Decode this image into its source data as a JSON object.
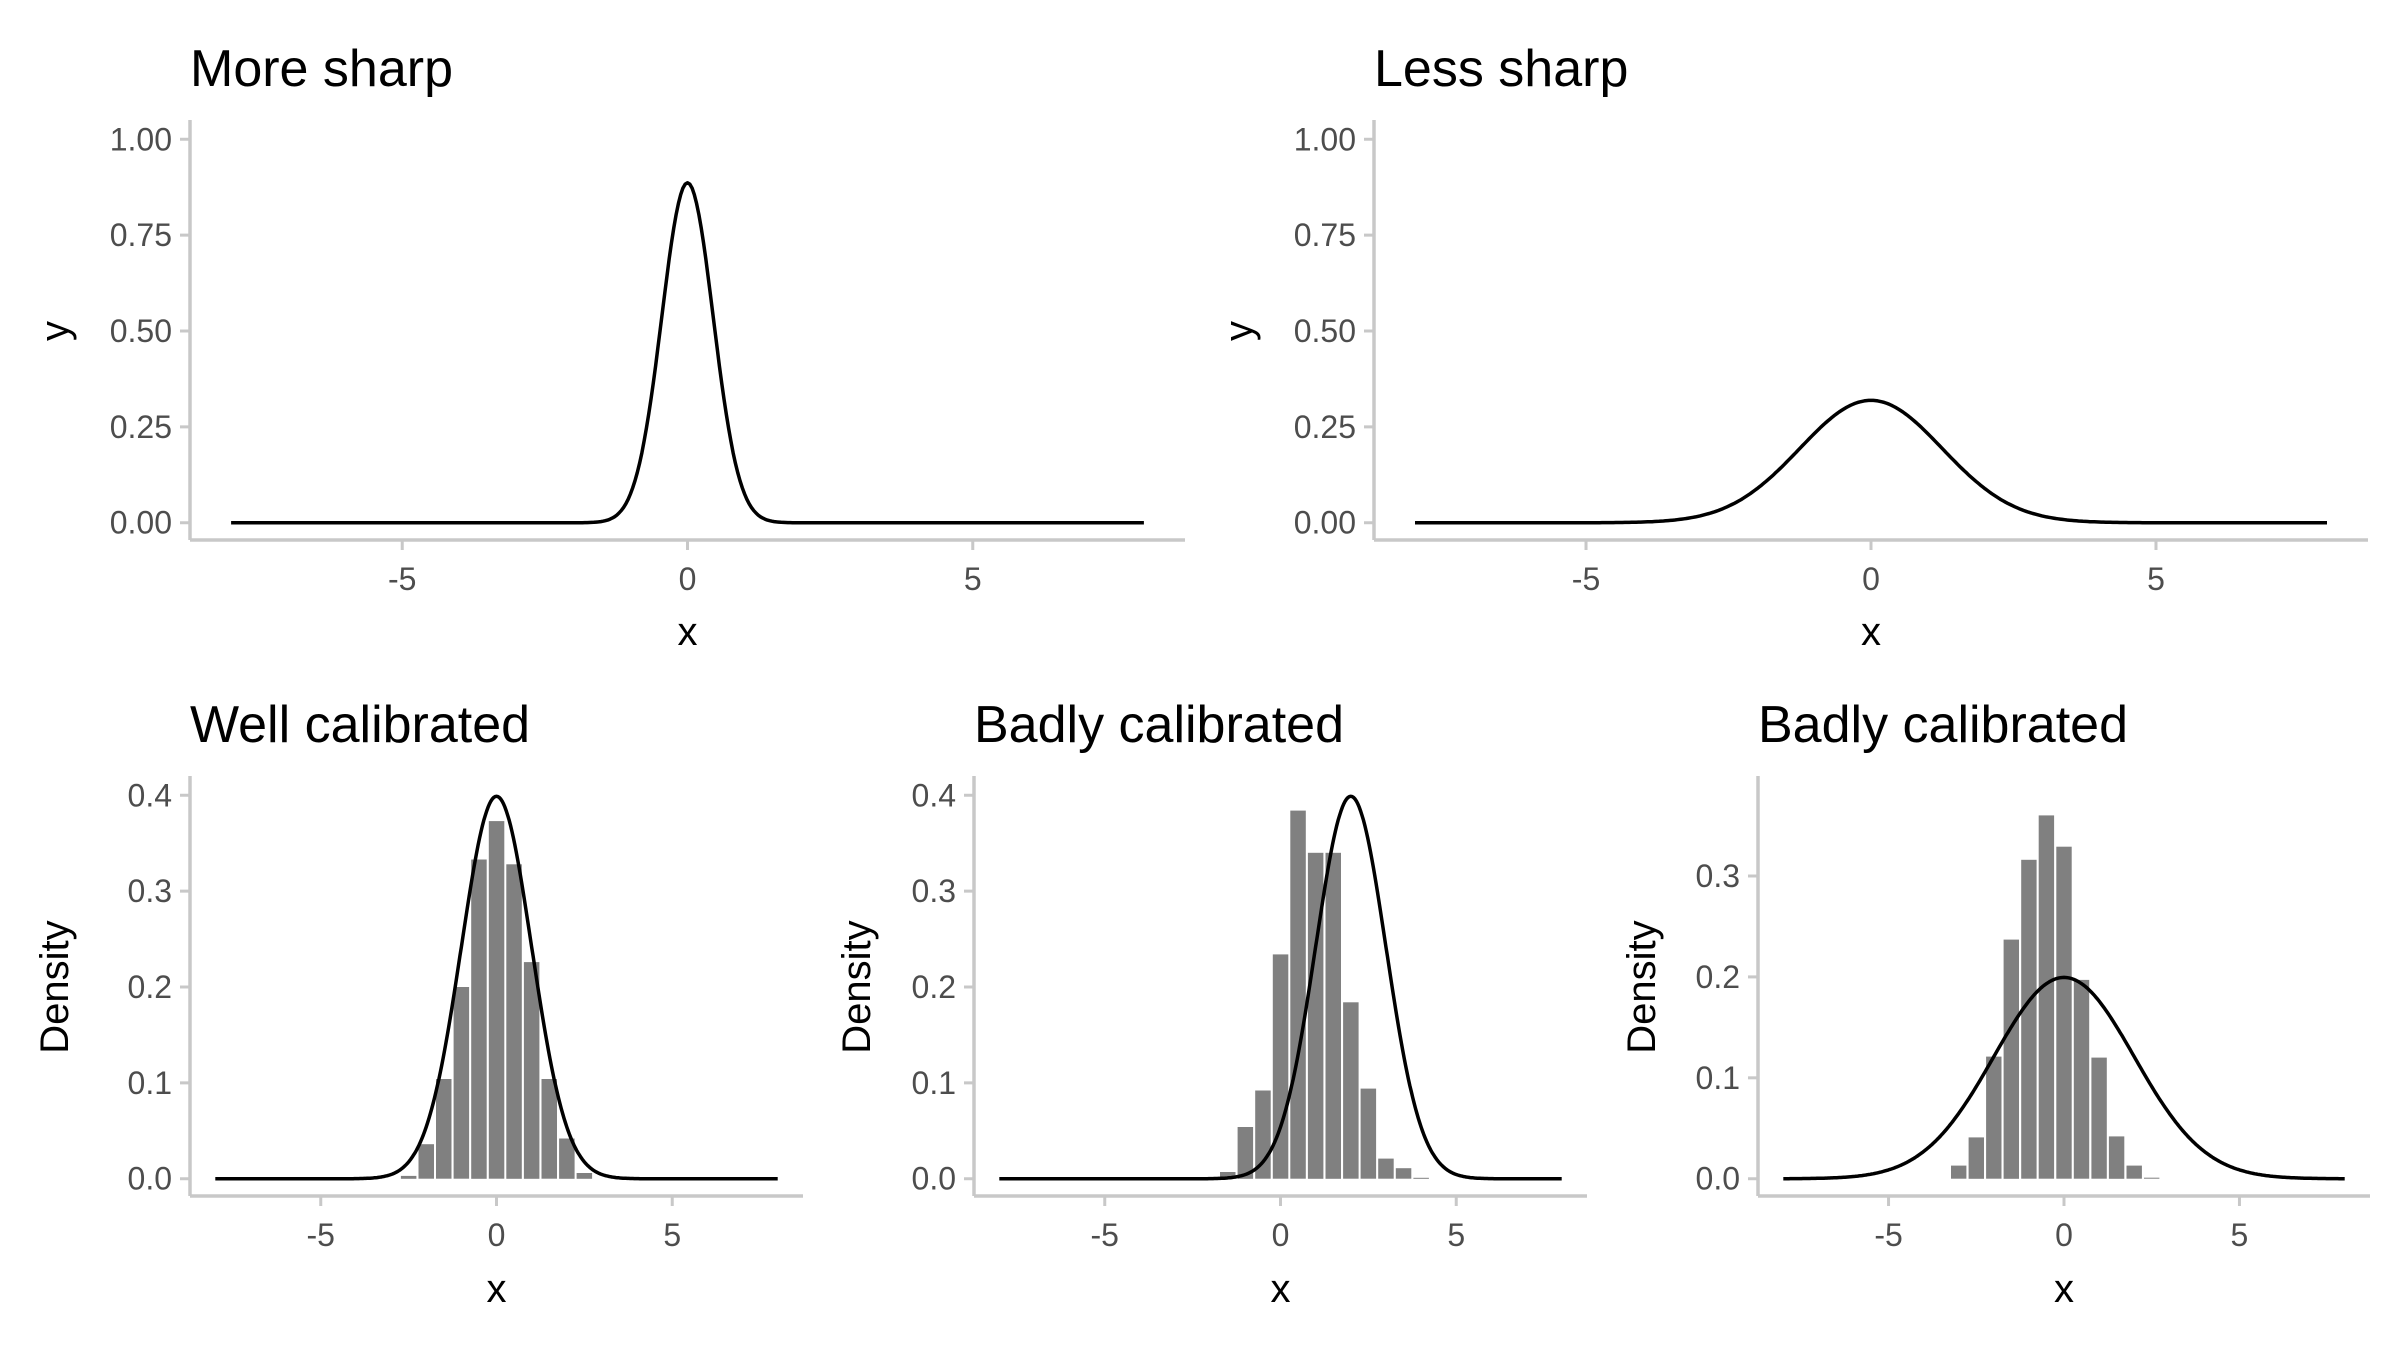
{
  "colors": {
    "background": "#ffffff",
    "bar": "#808080",
    "line": "#000000",
    "axis": "#c8c8c8",
    "tick_text": "#4d4d4d",
    "text": "#000000"
  },
  "chart_data": [
    {
      "type": "line",
      "title": "More sharp",
      "xlabel": "x",
      "ylabel": "y",
      "xlim": [
        -8,
        8
      ],
      "ylim": [
        0,
        1
      ],
      "xticks": [
        -5,
        0,
        5
      ],
      "xtick_labels": [
        "-5",
        "0",
        "5"
      ],
      "yticks": [
        0,
        0.25,
        0.5,
        0.75,
        1.0
      ],
      "ytick_labels": [
        "0.00",
        "0.25",
        "0.50",
        "0.75",
        "1.00"
      ],
      "grid": false,
      "curve": {
        "shape": "normal",
        "mean": 0,
        "sd": 0.45,
        "x_range": [
          -8,
          8
        ]
      }
    },
    {
      "type": "line",
      "title": "Less sharp",
      "xlabel": "x",
      "ylabel": "y",
      "xlim": [
        -8,
        8
      ],
      "ylim": [
        0,
        1
      ],
      "xticks": [
        -5,
        0,
        5
      ],
      "xtick_labels": [
        "-5",
        "0",
        "5"
      ],
      "yticks": [
        0,
        0.25,
        0.5,
        0.75,
        1.0
      ],
      "ytick_labels": [
        "0.00",
        "0.25",
        "0.50",
        "0.75",
        "1.00"
      ],
      "grid": false,
      "curve": {
        "shape": "normal",
        "mean": 0,
        "sd": 1.25,
        "x_range": [
          -8,
          8
        ]
      }
    },
    {
      "type": "bar",
      "title": "Well calibrated",
      "xlabel": "x",
      "ylabel": "Density",
      "xlim": [
        -8,
        8
      ],
      "ylim": [
        0,
        0.4
      ],
      "xticks": [
        -5,
        0,
        5
      ],
      "xtick_labels": [
        "-5",
        "0",
        "5"
      ],
      "yticks": [
        0,
        0.1,
        0.2,
        0.3,
        0.4
      ],
      "ytick_labels": [
        "0.0",
        "0.1",
        "0.2",
        "0.3",
        "0.4"
      ],
      "grid": false,
      "histogram": {
        "x": [
          -2.5,
          -2.0,
          -1.5,
          -1.0,
          -0.5,
          0.0,
          0.5,
          1.0,
          1.5,
          2.0,
          2.5
        ],
        "values": [
          0.003,
          0.036,
          0.104,
          0.2,
          0.333,
          0.373,
          0.328,
          0.226,
          0.104,
          0.042,
          0.006
        ],
        "bin_width": 0.5
      },
      "curve": {
        "shape": "normal",
        "mean": 0,
        "sd": 1,
        "x_range": [
          -8,
          8
        ]
      }
    },
    {
      "type": "bar",
      "title": "Badly calibrated",
      "xlabel": "x",
      "ylabel": "Density",
      "xlim": [
        -8,
        8
      ],
      "ylim": [
        0,
        0.4
      ],
      "xticks": [
        -5,
        0,
        5
      ],
      "xtick_labels": [
        "-5",
        "0",
        "5"
      ],
      "yticks": [
        0,
        0.1,
        0.2,
        0.3,
        0.4
      ],
      "ytick_labels": [
        "0.0",
        "0.1",
        "0.2",
        "0.3",
        "0.4"
      ],
      "grid": false,
      "histogram": {
        "x": [
          -1.5,
          -1.0,
          -0.5,
          0.0,
          0.5,
          1.0,
          1.5,
          2.0,
          2.5,
          3.0,
          3.5,
          4.0
        ],
        "values": [
          0.007,
          0.054,
          0.092,
          0.234,
          0.384,
          0.34,
          0.34,
          0.184,
          0.094,
          0.021,
          0.011,
          0.001
        ],
        "bin_width": 0.5
      },
      "curve": {
        "shape": "normal",
        "mean": 2,
        "sd": 1,
        "x_range": [
          -8,
          8
        ]
      }
    },
    {
      "type": "bar",
      "title": "Badly calibrated",
      "xlabel": "x",
      "ylabel": "Density",
      "xlim": [
        -8,
        8
      ],
      "ylim": [
        0,
        0.38
      ],
      "xticks": [
        -5,
        0,
        5
      ],
      "xtick_labels": [
        "-5",
        "0",
        "5"
      ],
      "yticks": [
        0,
        0.1,
        0.2,
        0.3
      ],
      "ytick_labels": [
        "0.0",
        "0.1",
        "0.2",
        "0.3"
      ],
      "grid": false,
      "histogram": {
        "x": [
          -3.0,
          -2.5,
          -2.0,
          -1.5,
          -1.0,
          -0.5,
          0.0,
          0.5,
          1.0,
          1.5,
          2.0,
          2.5
        ],
        "values": [
          0.013,
          0.041,
          0.121,
          0.237,
          0.316,
          0.36,
          0.329,
          0.197,
          0.12,
          0.042,
          0.013,
          0.001
        ],
        "bin_width": 0.5
      },
      "curve": {
        "shape": "normal",
        "mean": 0,
        "sd": 2,
        "x_range": [
          -8,
          8
        ]
      }
    }
  ]
}
